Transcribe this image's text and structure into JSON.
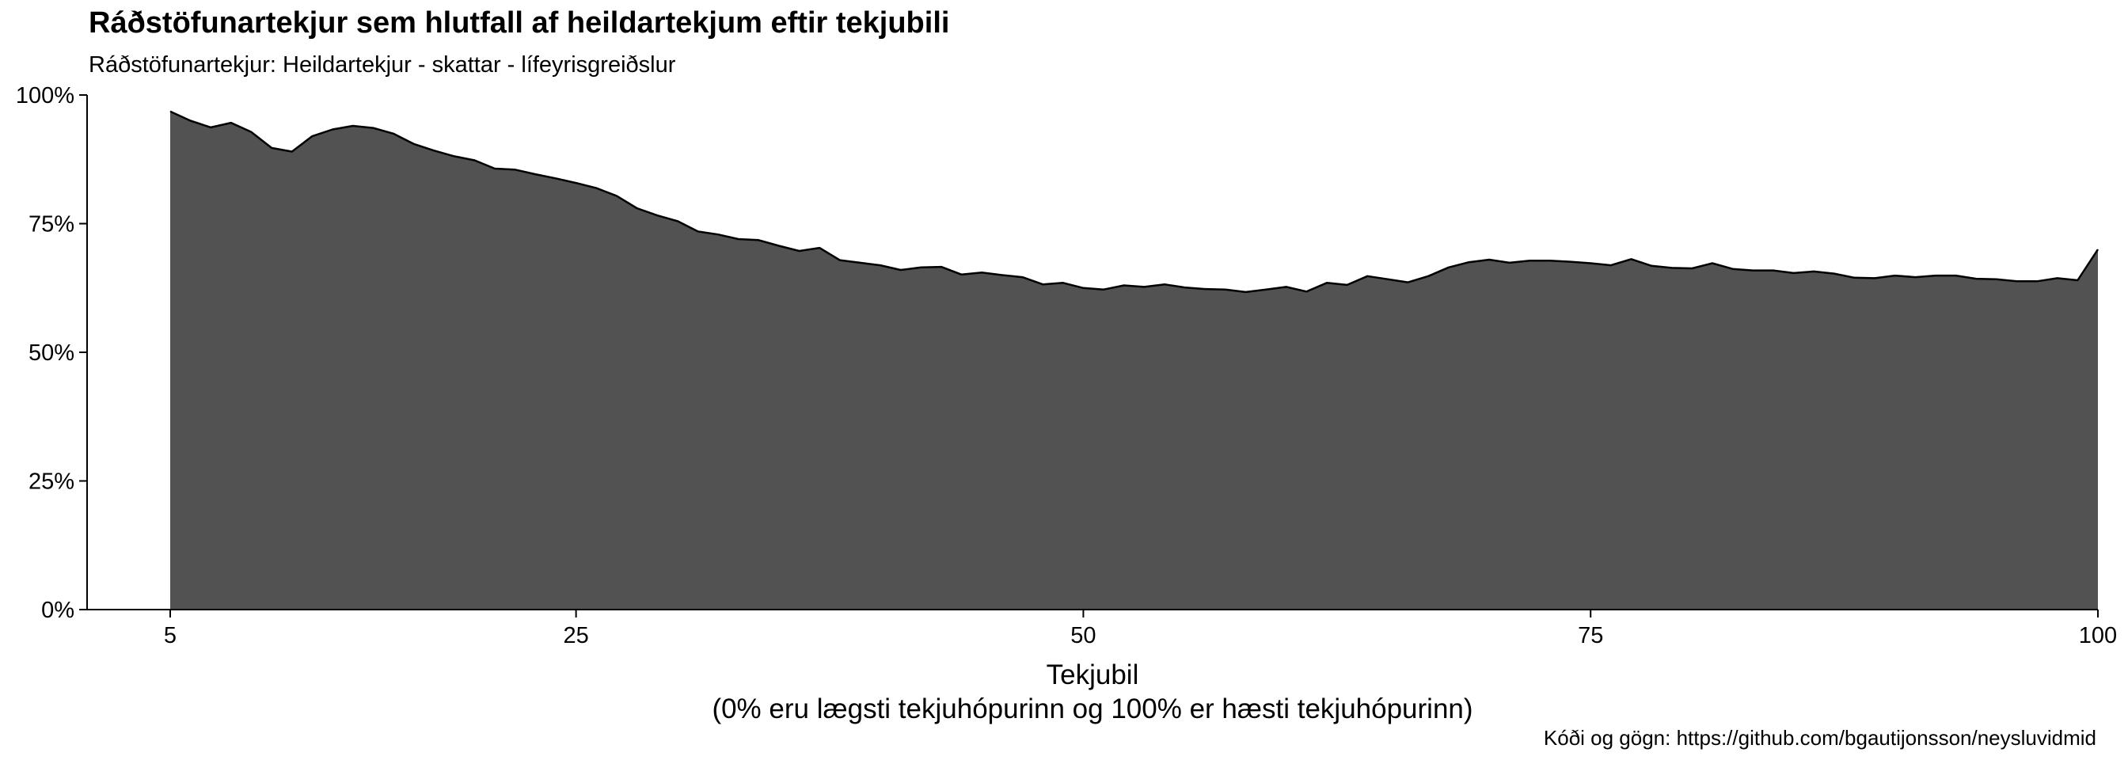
{
  "chart_data": {
    "type": "area",
    "title": "Ráðstöfunartekjur sem hlutfall af heildartekjum eftir tekjubili",
    "subtitle": "Ráðstöfunartekjur: Heildartekjur - skattar - lífeyrisgreiðslur",
    "xlabel": "Tekjubil",
    "xlabel_sub": "(0% eru lægsti tekjuhópurinn og 100% er hæsti tekjuhópurinn)",
    "caption": "Kóði og gögn: https://github.com/bgautijonsson/neysluvidmid",
    "xlim": [
      0,
      100
    ],
    "ylim": [
      0,
      1
    ],
    "x_ticks": [
      5,
      25,
      50,
      75,
      100
    ],
    "x_tick_labels": [
      "5",
      "25",
      "50",
      "75",
      "100"
    ],
    "y_ticks": [
      0,
      0.25,
      0.5,
      0.75,
      1
    ],
    "y_tick_labels": [
      "0%",
      "25%",
      "50%",
      "75%",
      "100%"
    ],
    "grid": false,
    "fill_color": "#525252",
    "line_color": "#000000",
    "x": [
      5,
      6,
      7,
      8,
      9,
      10,
      11,
      12,
      13,
      14,
      15,
      16,
      17,
      18,
      19,
      20,
      21,
      22,
      23,
      24,
      25,
      26,
      27,
      28,
      29,
      30,
      31,
      32,
      33,
      34,
      35,
      36,
      37,
      38,
      39,
      40,
      41,
      42,
      43,
      44,
      45,
      46,
      47,
      48,
      49,
      50,
      51,
      52,
      53,
      54,
      55,
      56,
      57,
      58,
      59,
      60,
      61,
      62,
      63,
      64,
      65,
      66,
      67,
      68,
      69,
      70,
      71,
      72,
      73,
      74,
      75,
      76,
      77,
      78,
      79,
      80,
      81,
      82,
      83,
      84,
      85,
      86,
      87,
      88,
      89,
      90,
      91,
      92,
      93,
      94,
      95,
      96,
      97,
      98,
      99,
      100
    ],
    "y": [
      0.968,
      0.95,
      0.937,
      0.946,
      0.928,
      0.897,
      0.89,
      0.92,
      0.933,
      0.94,
      0.936,
      0.925,
      0.905,
      0.892,
      0.881,
      0.873,
      0.857,
      0.855,
      0.846,
      0.838,
      0.829,
      0.819,
      0.804,
      0.78,
      0.766,
      0.755,
      0.735,
      0.729,
      0.72,
      0.718,
      0.707,
      0.697,
      0.703,
      0.679,
      0.674,
      0.669,
      0.66,
      0.665,
      0.666,
      0.651,
      0.655,
      0.65,
      0.646,
      0.632,
      0.635,
      0.625,
      0.622,
      0.63,
      0.627,
      0.632,
      0.626,
      0.623,
      0.622,
      0.617,
      0.622,
      0.627,
      0.618,
      0.635,
      0.631,
      0.648,
      0.642,
      0.636,
      0.648,
      0.665,
      0.675,
      0.68,
      0.674,
      0.678,
      0.678,
      0.676,
      0.673,
      0.669,
      0.681,
      0.668,
      0.664,
      0.663,
      0.673,
      0.662,
      0.659,
      0.659,
      0.654,
      0.657,
      0.653,
      0.645,
      0.644,
      0.649,
      0.646,
      0.649,
      0.649,
      0.643,
      0.642,
      0.638,
      0.638,
      0.644,
      0.64,
      0.7
    ]
  }
}
